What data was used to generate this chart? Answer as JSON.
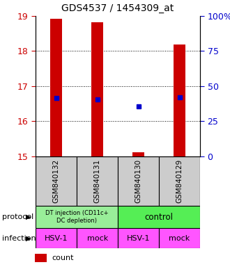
{
  "title": "GDS4537 / 1454309_at",
  "samples": [
    "GSM840132",
    "GSM840131",
    "GSM840130",
    "GSM840129"
  ],
  "ylim": [
    15,
    19
  ],
  "yticks_left": [
    15,
    16,
    17,
    18,
    19
  ],
  "yticks_right": [
    0,
    25,
    50,
    75,
    100
  ],
  "yright_labels": [
    "0",
    "25",
    "50",
    "75",
    "100%"
  ],
  "bar_bottoms": [
    15,
    15,
    15,
    15
  ],
  "bar_tops": [
    18.93,
    18.82,
    15.12,
    18.18
  ],
  "bar_color": "#cc0000",
  "bar_width": 0.28,
  "percentile_values": [
    16.65,
    16.62,
    16.42,
    16.68
  ],
  "percentile_color": "#0000cc",
  "infection_labels": [
    "HSV-1",
    "mock",
    "HSV-1",
    "mock"
  ],
  "infection_color": "#ff55ff",
  "protocol_left_label": "DT injection (CD11c+\nDC depletion)",
  "protocol_right_label": "control",
  "protocol_left_color": "#99ee99",
  "protocol_right_color": "#55ee55",
  "sample_box_color": "#cccccc",
  "left_tick_color": "#cc0000",
  "right_tick_color": "#0000cc",
  "x_positions": [
    0,
    1,
    2,
    3
  ]
}
